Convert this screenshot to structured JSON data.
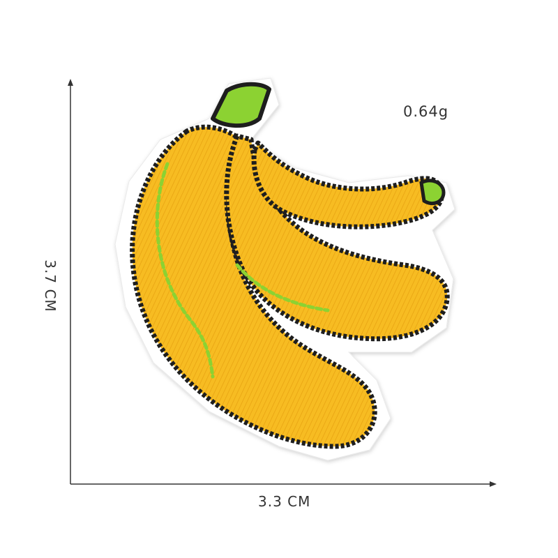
{
  "product": {
    "weight": "0.64g",
    "width": "3.3 CM",
    "height": "3.7 CM"
  },
  "image": {
    "subject-icon": "embroidered-banana-patch"
  },
  "colors": {
    "banana_yellow": "#F5B41E",
    "banana_light": "#FBCB3A",
    "outline": "#1E1E1E",
    "stem_green": "#8CD232",
    "felt_white": "#FFFFFF",
    "dimension_line": "#333333"
  }
}
